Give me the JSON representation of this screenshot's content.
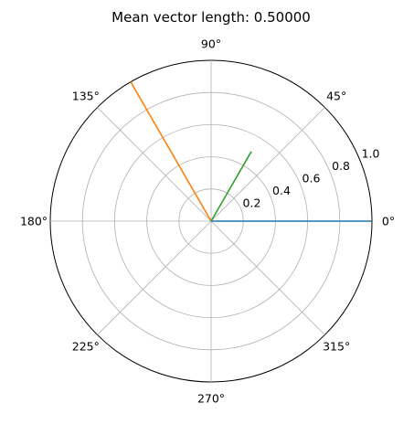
{
  "chart_data": {
    "type": "polar-line",
    "title": "Mean vector length: 0.50000",
    "angle_ticks": [
      {
        "deg": 0,
        "label": "0°"
      },
      {
        "deg": 45,
        "label": "45°"
      },
      {
        "deg": 90,
        "label": "90°"
      },
      {
        "deg": 135,
        "label": "135°"
      },
      {
        "deg": 180,
        "label": "180°"
      },
      {
        "deg": 225,
        "label": "225°"
      },
      {
        "deg": 270,
        "label": "270°"
      },
      {
        "deg": 315,
        "label": "315°"
      }
    ],
    "radial_ticks": [
      {
        "r": 0.2,
        "label": "0.2"
      },
      {
        "r": 0.4,
        "label": "0.4"
      },
      {
        "r": 0.6,
        "label": "0.6"
      },
      {
        "r": 0.8,
        "label": "0.8"
      },
      {
        "r": 1.0,
        "label": "1.0"
      }
    ],
    "rlim": [
      0,
      1.0
    ],
    "radial_label_angle_deg": 22.5,
    "grid": true,
    "series": [
      {
        "angle_deg": 0,
        "r": 1.0,
        "color": "#1f77b4"
      },
      {
        "angle_deg": 120,
        "r": 1.0,
        "color": "#ff7f0e"
      },
      {
        "angle_deg": 60,
        "r": 0.5,
        "color": "#2ca02c"
      }
    ]
  }
}
